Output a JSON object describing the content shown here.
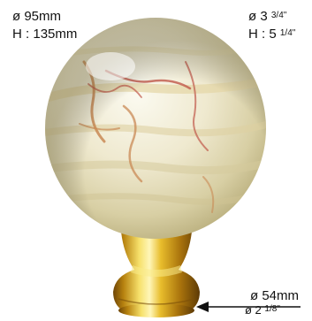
{
  "dimensions_metric": {
    "diameter": "ø 95mm",
    "height_label": "H",
    "height_sep": ":",
    "height_value": "135mm"
  },
  "dimensions_imperial": {
    "diameter_prefix": "ø 3",
    "diameter_fraction": "3/4\"",
    "height_label": "H",
    "height_sep": ":",
    "height_whole": "5",
    "height_fraction": "1/4\""
  },
  "base_dimensions": {
    "metric": "ø 54mm",
    "imperial_prefix": "ø 2",
    "imperial_fraction": "1/8\""
  },
  "colors": {
    "onyx_light": "#f3f0da",
    "onyx_mid": "#d9cfa0",
    "vein_orange": "#c98a55",
    "vein_red": "#c0584a",
    "brass_light": "#f7e36b",
    "brass_mid": "#d6a51e",
    "brass_dark": "#7a4f08",
    "arrow": "#111111"
  },
  "image_subject": "polished onyx ball finial on brass base"
}
